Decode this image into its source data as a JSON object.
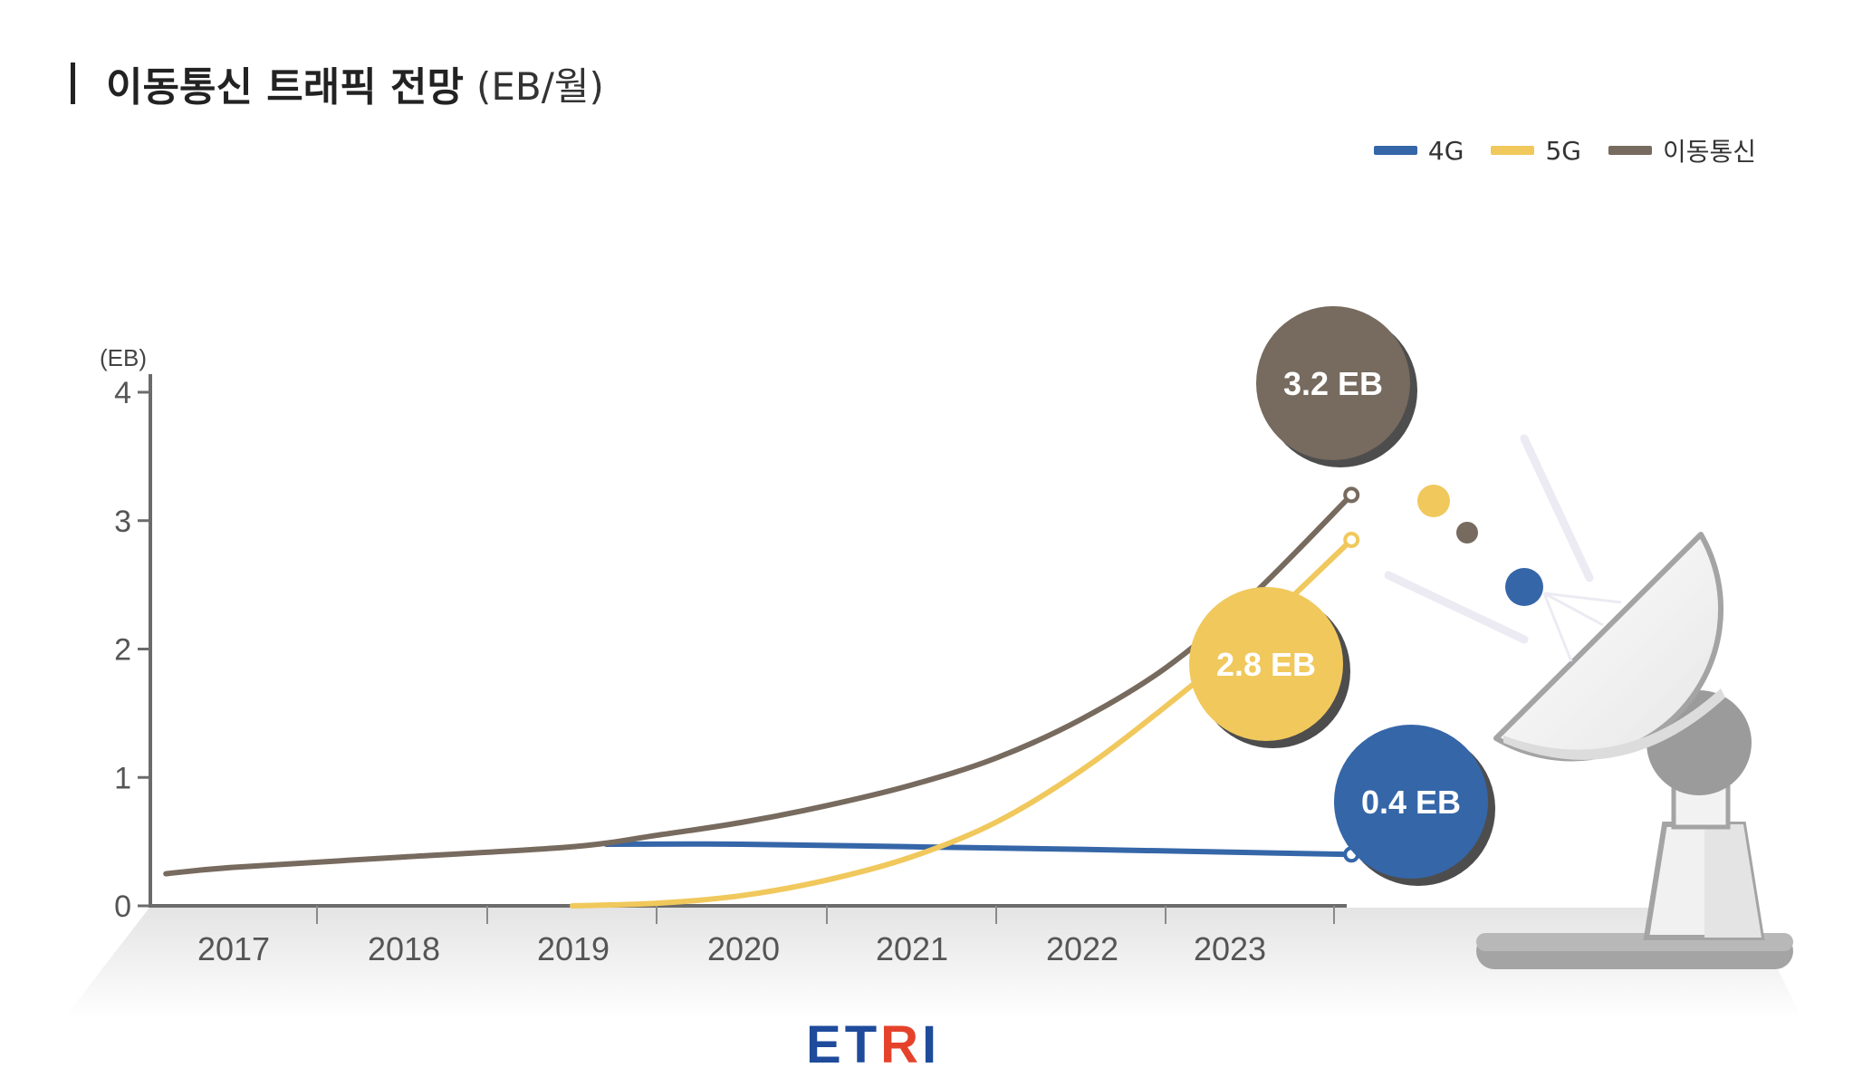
{
  "title": {
    "main": "이동통신 트래픽 전망",
    "unit": "(EB/월)"
  },
  "legend": [
    {
      "label": "4G",
      "color": "#3566a8"
    },
    {
      "label": "5G",
      "color": "#f0c85c"
    },
    {
      "label": "이동통신",
      "color": "#776a5e"
    }
  ],
  "chart_data": {
    "type": "line",
    "y_unit_label": "(EB)",
    "ylim": [
      0,
      4
    ],
    "y_ticks": [
      0,
      1,
      2,
      3,
      4
    ],
    "x_ticks": [
      "2017",
      "2018",
      "2019",
      "2020",
      "2021",
      "2022",
      "2023"
    ],
    "series": [
      {
        "name": "4G",
        "color": "#3566a8",
        "x": [
          2019.2,
          2020,
          2021,
          2022,
          2023.6
        ],
        "y": [
          0.48,
          0.48,
          0.46,
          0.44,
          0.4
        ]
      },
      {
        "name": "5G",
        "color": "#f0c85c",
        "x": [
          2019,
          2019.5,
          2020,
          2020.5,
          2021,
          2021.5,
          2022,
          2022.5,
          2023,
          2023.6
        ],
        "y": [
          0,
          0.02,
          0.08,
          0.2,
          0.38,
          0.65,
          1.05,
          1.55,
          2.1,
          2.85
        ]
      },
      {
        "name": "이동통신",
        "color": "#776a5e",
        "x": [
          2016.6,
          2017,
          2018,
          2019,
          2019.5,
          2020,
          2020.5,
          2021,
          2021.5,
          2022,
          2022.5,
          2023,
          2023.6
        ],
        "y": [
          0.25,
          0.3,
          0.38,
          0.46,
          0.55,
          0.65,
          0.78,
          0.94,
          1.15,
          1.45,
          1.85,
          2.4,
          3.2
        ]
      }
    ],
    "annotations": [
      {
        "text": "3.2 EB",
        "series": "이동통신",
        "color": "#776a5e"
      },
      {
        "text": "2.8 EB",
        "series": "5G",
        "color": "#f0c85c"
      },
      {
        "text": "0.4 EB",
        "series": "4G",
        "color": "#3566a8"
      }
    ]
  },
  "logo": {
    "text": "ETRI",
    "colors": {
      "primary": "#1e4b9b",
      "accent": "#e5422b"
    }
  }
}
